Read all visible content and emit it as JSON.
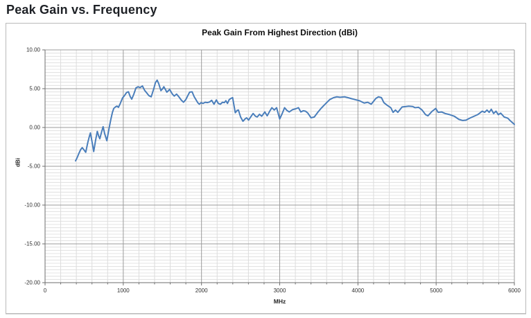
{
  "header": {
    "title": "Peak Gain vs. Frequency"
  },
  "chart_data": {
    "type": "line",
    "title": "Peak Gain From Highest Direction (dBi)",
    "xlabel": "MHz",
    "ylabel": "dBi",
    "xlim": [
      0,
      6000
    ],
    "ylim": [
      -20,
      10
    ],
    "x_tick_labels": [
      "0",
      "1000",
      "2000",
      "3000",
      "4000",
      "5000",
      "6000"
    ],
    "y_tick_labels": [
      "10.00",
      "5.00",
      "0.00",
      "-5.00",
      "-10.00",
      "-15.00",
      "-20.00"
    ],
    "x_major_step": 1000,
    "y_major_step": 5,
    "x_minor_per_major": 5,
    "y_minor_per_major": 12,
    "grid": true,
    "legend_position": "none",
    "series": [
      {
        "name": "Peak Gain From Highest Direction",
        "color": "#4a7ebb",
        "points": [
          [
            390,
            -4.3
          ],
          [
            410,
            -3.9
          ],
          [
            430,
            -3.4
          ],
          [
            455,
            -2.85
          ],
          [
            475,
            -2.6
          ],
          [
            495,
            -2.85
          ],
          [
            520,
            -3.2
          ],
          [
            545,
            -2.0
          ],
          [
            565,
            -1.2
          ],
          [
            580,
            -0.7
          ],
          [
            600,
            -1.8
          ],
          [
            622,
            -3.1
          ],
          [
            645,
            -1.7
          ],
          [
            668,
            -0.5
          ],
          [
            685,
            -1.1
          ],
          [
            700,
            -1.45
          ],
          [
            722,
            -0.6
          ],
          [
            742,
            0.1
          ],
          [
            762,
            -0.8
          ],
          [
            790,
            -1.7
          ],
          [
            815,
            -0.3
          ],
          [
            840,
            1.0
          ],
          [
            860,
            1.9
          ],
          [
            878,
            2.45
          ],
          [
            900,
            2.65
          ],
          [
            920,
            2.75
          ],
          [
            938,
            2.6
          ],
          [
            962,
            3.1
          ],
          [
            990,
            3.8
          ],
          [
            1015,
            4.1
          ],
          [
            1042,
            4.5
          ],
          [
            1066,
            4.6
          ],
          [
            1088,
            4.0
          ],
          [
            1108,
            3.65
          ],
          [
            1135,
            4.3
          ],
          [
            1162,
            5.1
          ],
          [
            1188,
            5.25
          ],
          [
            1215,
            5.15
          ],
          [
            1245,
            5.35
          ],
          [
            1272,
            4.8
          ],
          [
            1300,
            4.45
          ],
          [
            1328,
            4.1
          ],
          [
            1357,
            3.95
          ],
          [
            1390,
            5.0
          ],
          [
            1412,
            5.8
          ],
          [
            1433,
            6.1
          ],
          [
            1455,
            5.6
          ],
          [
            1481,
            4.75
          ],
          [
            1500,
            4.95
          ],
          [
            1519,
            5.25
          ],
          [
            1557,
            4.55
          ],
          [
            1593,
            4.9
          ],
          [
            1628,
            4.3
          ],
          [
            1652,
            4.05
          ],
          [
            1681,
            4.3
          ],
          [
            1711,
            3.95
          ],
          [
            1740,
            3.55
          ],
          [
            1770,
            3.25
          ],
          [
            1800,
            3.6
          ],
          [
            1825,
            4.1
          ],
          [
            1848,
            4.55
          ],
          [
            1880,
            4.6
          ],
          [
            1905,
            4.0
          ],
          [
            1928,
            3.6
          ],
          [
            1952,
            3.2
          ],
          [
            1972,
            3.0
          ],
          [
            1995,
            3.2
          ],
          [
            2020,
            3.1
          ],
          [
            2048,
            3.25
          ],
          [
            2075,
            3.2
          ],
          [
            2105,
            3.3
          ],
          [
            2130,
            3.5
          ],
          [
            2160,
            3.0
          ],
          [
            2190,
            3.55
          ],
          [
            2215,
            3.1
          ],
          [
            2242,
            3.0
          ],
          [
            2268,
            3.25
          ],
          [
            2292,
            3.2
          ],
          [
            2312,
            3.45
          ],
          [
            2332,
            3.1
          ],
          [
            2355,
            3.6
          ],
          [
            2378,
            3.75
          ],
          [
            2398,
            3.85
          ],
          [
            2418,
            2.7
          ],
          [
            2432,
            1.9
          ],
          [
            2455,
            2.2
          ],
          [
            2472,
            2.25
          ],
          [
            2500,
            1.35
          ],
          [
            2530,
            0.8
          ],
          [
            2557,
            1.1
          ],
          [
            2577,
            1.25
          ],
          [
            2602,
            0.95
          ],
          [
            2632,
            1.4
          ],
          [
            2660,
            1.8
          ],
          [
            2690,
            1.45
          ],
          [
            2712,
            1.35
          ],
          [
            2742,
            1.7
          ],
          [
            2770,
            1.45
          ],
          [
            2810,
            2.0
          ],
          [
            2840,
            1.5
          ],
          [
            2872,
            2.1
          ],
          [
            2900,
            2.55
          ],
          [
            2930,
            2.25
          ],
          [
            2960,
            2.55
          ],
          [
            3000,
            1.1
          ],
          [
            3032,
            1.8
          ],
          [
            3062,
            2.55
          ],
          [
            3092,
            2.2
          ],
          [
            3122,
            2.0
          ],
          [
            3165,
            2.3
          ],
          [
            3202,
            2.4
          ],
          [
            3240,
            2.55
          ],
          [
            3270,
            2.0
          ],
          [
            3300,
            2.15
          ],
          [
            3330,
            2.1
          ],
          [
            3360,
            1.85
          ],
          [
            3400,
            1.25
          ],
          [
            3442,
            1.35
          ],
          [
            3490,
            2.0
          ],
          [
            3532,
            2.5
          ],
          [
            3580,
            3.0
          ],
          [
            3640,
            3.6
          ],
          [
            3690,
            3.85
          ],
          [
            3730,
            3.95
          ],
          [
            3772,
            3.9
          ],
          [
            3830,
            3.95
          ],
          [
            3870,
            3.85
          ],
          [
            3905,
            3.75
          ],
          [
            3960,
            3.6
          ],
          [
            4020,
            3.45
          ],
          [
            4080,
            3.15
          ],
          [
            4125,
            3.25
          ],
          [
            4170,
            3.0
          ],
          [
            4230,
            3.75
          ],
          [
            4262,
            3.95
          ],
          [
            4300,
            3.85
          ],
          [
            4332,
            3.2
          ],
          [
            4375,
            2.85
          ],
          [
            4420,
            2.55
          ],
          [
            4450,
            1.95
          ],
          [
            4480,
            2.25
          ],
          [
            4510,
            1.95
          ],
          [
            4565,
            2.65
          ],
          [
            4615,
            2.7
          ],
          [
            4650,
            2.75
          ],
          [
            4700,
            2.7
          ],
          [
            4732,
            2.55
          ],
          [
            4775,
            2.6
          ],
          [
            4820,
            2.25
          ],
          [
            4865,
            1.65
          ],
          [
            4895,
            1.5
          ],
          [
            4950,
            2.1
          ],
          [
            4995,
            2.45
          ],
          [
            5025,
            1.95
          ],
          [
            5070,
            2.0
          ],
          [
            5115,
            1.8
          ],
          [
            5175,
            1.65
          ],
          [
            5232,
            1.45
          ],
          [
            5290,
            1.05
          ],
          [
            5340,
            0.9
          ],
          [
            5382,
            0.95
          ],
          [
            5440,
            1.25
          ],
          [
            5485,
            1.45
          ],
          [
            5530,
            1.65
          ],
          [
            5590,
            2.1
          ],
          [
            5620,
            1.95
          ],
          [
            5650,
            2.25
          ],
          [
            5678,
            1.95
          ],
          [
            5705,
            2.35
          ],
          [
            5735,
            1.8
          ],
          [
            5765,
            2.1
          ],
          [
            5795,
            1.65
          ],
          [
            5825,
            1.85
          ],
          [
            5870,
            1.35
          ],
          [
            5915,
            1.2
          ],
          [
            5955,
            0.8
          ],
          [
            6000,
            0.4
          ]
        ]
      }
    ]
  },
  "colors": {
    "line": "#4a7ebb",
    "grid_minor": "#dcdcdc",
    "grid_major": "#9b9b9b",
    "axis": "#6e6e6e",
    "tick_text": "#303030",
    "frame_border": "#b9b9b9",
    "title_text": "#1e2126"
  }
}
